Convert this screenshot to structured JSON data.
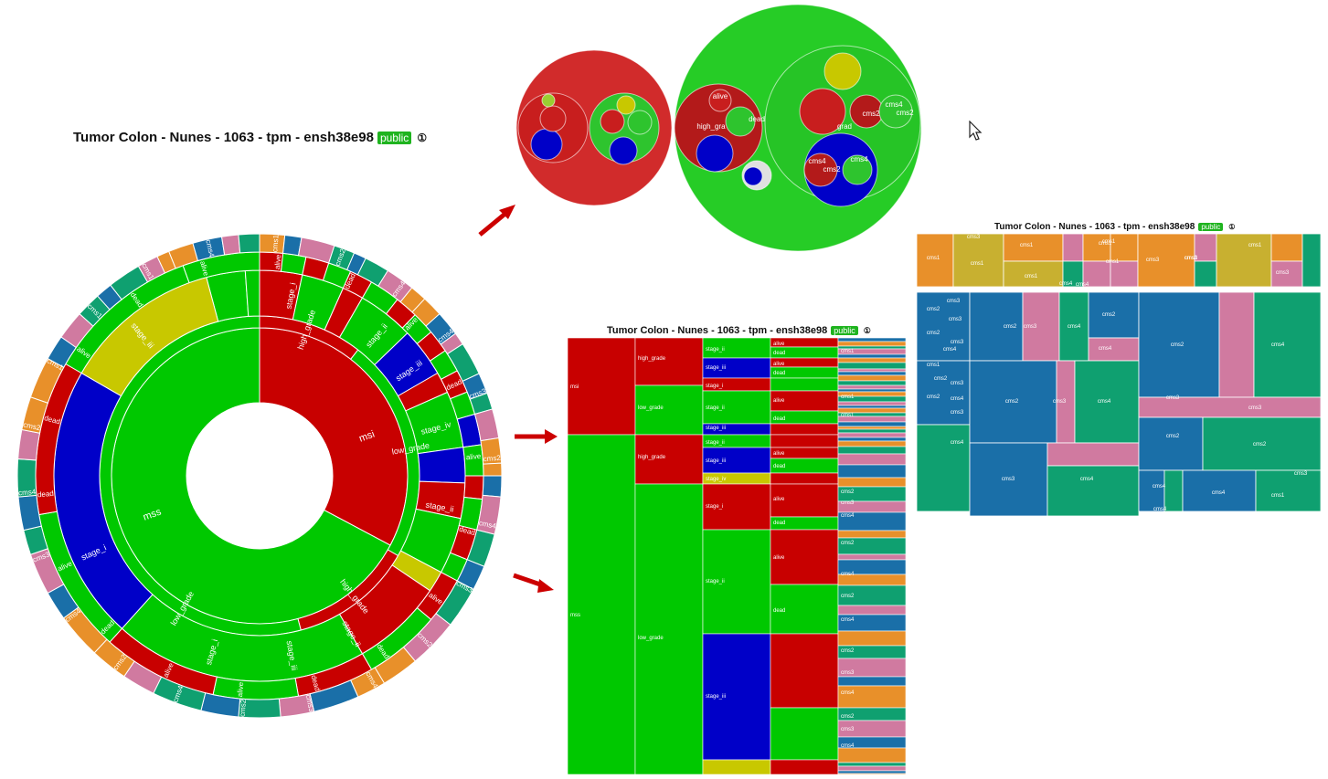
{
  "dataset_title": "Tumor Colon - Nunes - 1063 - tpm - ensh38e98",
  "badge": "public",
  "info_symbol": "①",
  "colors": {
    "red": "#c80000",
    "green": "#00c800",
    "blue": "#0000c8",
    "olive": "#c8c800",
    "cms1": "#e8902a",
    "cms2": "#1a6fa8",
    "cms3": "#d07aa0",
    "cms4": "#0fa070",
    "bubble_red": "#d12b2b",
    "bubble_green": "#26cc26"
  },
  "sunburst": {
    "center_labels": [
      "msi",
      "mss"
    ],
    "grade_labels": [
      "high_grade",
      "low_grade",
      "high_grade",
      "low_grade"
    ],
    "stage_labels": [
      "stage_i",
      "stage_ii",
      "stage_iii",
      "stage_iv",
      "stage_ii",
      "stage_iii",
      "stage_i",
      "stage_iii",
      "stage_ii",
      "stage_i"
    ],
    "outcome_labels": [
      "alive",
      "dead",
      "alive",
      "dead",
      "alive",
      "dead",
      "alive",
      "dead",
      "dead",
      "alive",
      "alive",
      "dead",
      "alive",
      "dead",
      "dead",
      "alive",
      "dead",
      "alive"
    ],
    "cms_labels": [
      "cms1",
      "cms2",
      "cms4",
      "cms4",
      "cms3",
      "cms2",
      "cms4",
      "cms3",
      "cms2",
      "cms4",
      "cms3",
      "cms2",
      "cms4",
      "cms2",
      "cms4",
      "cms3",
      "cms4",
      "cms2",
      "cms1",
      "cms1",
      "cms1",
      "cms4"
    ]
  },
  "icicle": {
    "level1": [
      "msi",
      "mss"
    ],
    "level2": [
      "high_grade",
      "low_grade",
      "high_grade",
      "low_grade"
    ],
    "level3": [
      "stage_ii",
      "stage_iii",
      "stage_i",
      "stage_ii",
      "stage_iii",
      "stage_ii",
      "stage_iii",
      "stage_iv",
      "stage_i",
      "stage_ii",
      "stage_iii"
    ],
    "level4": [
      "alive",
      "dead",
      "alive",
      "dead",
      "alive",
      "dead",
      "alive",
      "dead",
      "alive",
      "dead",
      "alive",
      "dead"
    ],
    "level5": [
      "cms1",
      "cms1",
      "cms1",
      "cms2",
      "cms3",
      "cms4",
      "cms2",
      "cms4",
      "cms2",
      "cms4",
      "cms2",
      "cms3",
      "cms4",
      "cms2",
      "cms3",
      "cms4"
    ]
  },
  "bubble": {
    "labels": [
      "high_gra",
      "alive",
      "dead",
      "cms4",
      "cms2",
      "cms4",
      "cms2",
      "cms4",
      "cms2",
      "grad"
    ]
  },
  "treemap": {
    "labels": [
      "cms1",
      "cms3",
      "cms1",
      "cms1",
      "cms1",
      "cms1",
      "cms3",
      "cms1",
      "cms3",
      "cms1",
      "cms1",
      "cms4",
      "cms4",
      "cms1",
      "cms3",
      "cms3",
      "cms2",
      "cms3",
      "cms2",
      "cms3",
      "cms4",
      "cms2",
      "cms2",
      "cms3",
      "cms4",
      "cms4",
      "cms1",
      "cms3",
      "cms2",
      "cms3",
      "cms4",
      "cms2",
      "cms4",
      "cms2",
      "cms3",
      "cms4",
      "cms3",
      "cms4",
      "cms2",
      "cms4",
      "cms2",
      "cms2",
      "cms4",
      "cms4",
      "cms1",
      "cms3",
      "cms3",
      "cms4",
      "cms3"
    ]
  }
}
